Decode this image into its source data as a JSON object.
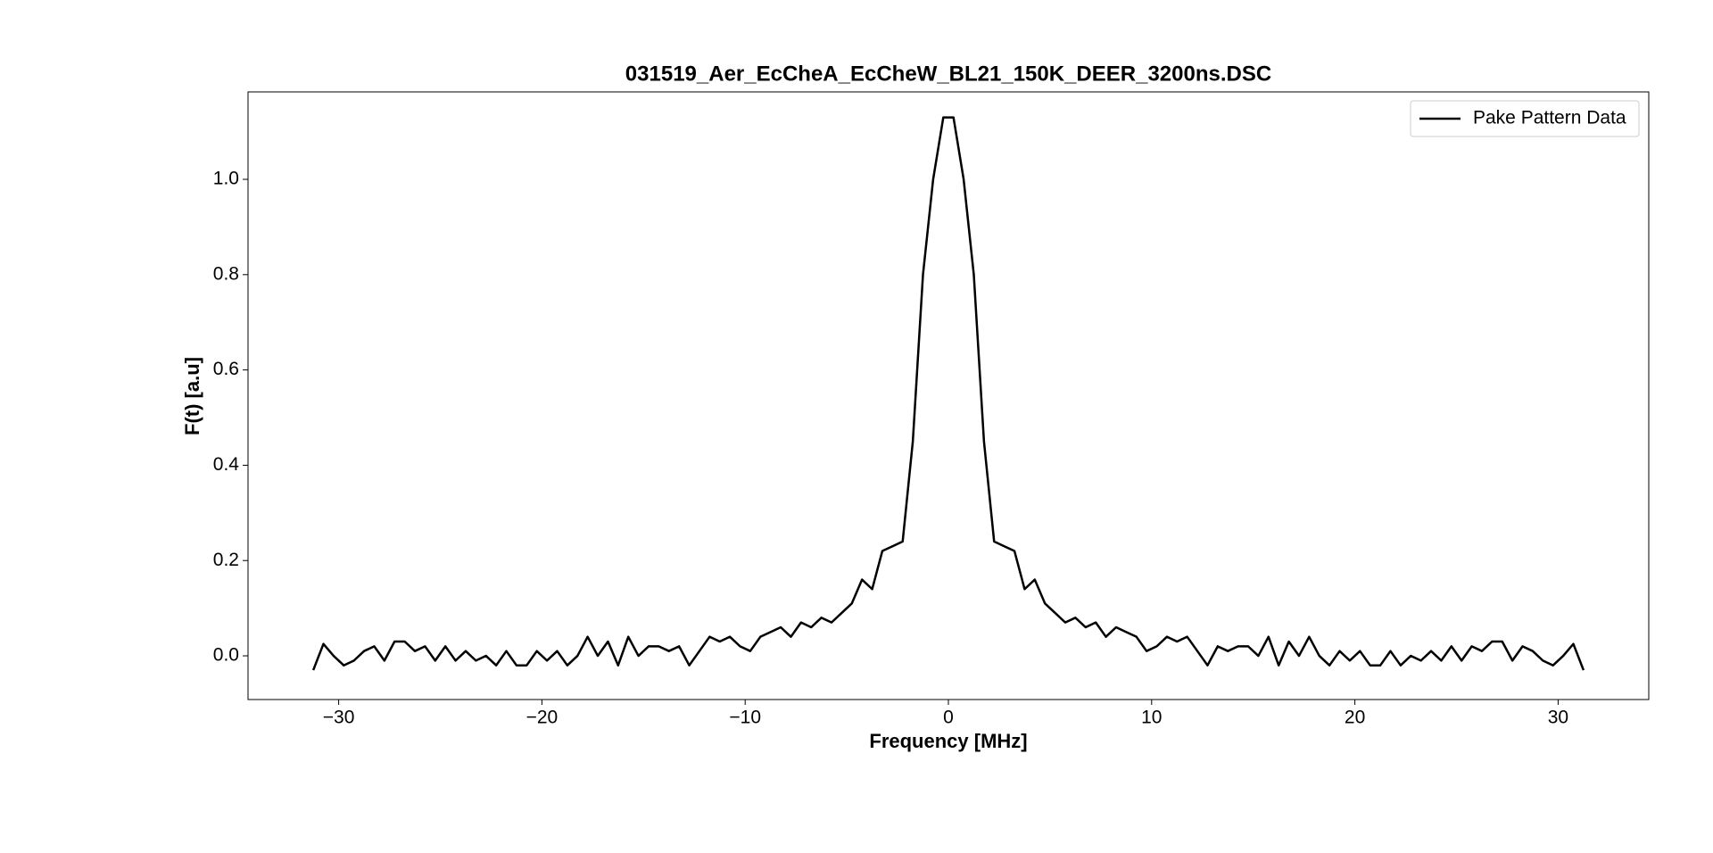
{
  "chart_data": {
    "type": "line",
    "title": "031519_Aer_EcCheA_EcCheW_BL21_150K_DEER_3200ns.DSC",
    "x_label": "Frequency [MHz]",
    "y_label": "F(t) [a.u]",
    "x": [
      -31.25,
      -30.75,
      -30.25,
      -29.75,
      -29.25,
      -28.75,
      -28.25,
      -27.75,
      -27.25,
      -26.75,
      -26.25,
      -25.75,
      -25.25,
      -24.75,
      -24.25,
      -23.75,
      -23.25,
      -22.75,
      -22.25,
      -21.75,
      -21.25,
      -20.75,
      -20.25,
      -19.75,
      -19.25,
      -18.75,
      -18.25,
      -17.75,
      -17.25,
      -16.75,
      -16.25,
      -15.75,
      -15.25,
      -14.75,
      -14.25,
      -13.75,
      -13.25,
      -12.75,
      -12.25,
      -11.75,
      -11.25,
      -10.75,
      -10.25,
      -9.75,
      -9.25,
      -8.75,
      -8.25,
      -7.75,
      -7.25,
      -6.75,
      -6.25,
      -5.75,
      -5.25,
      -4.75,
      -4.25,
      -3.75,
      -3.25,
      -2.75,
      -2.25,
      -1.75,
      -1.25,
      -0.75,
      -0.25,
      0.25,
      0.75,
      1.25,
      1.75,
      2.25,
      2.75,
      3.25,
      3.75,
      4.25,
      4.75,
      5.25,
      5.75,
      6.25,
      6.75,
      7.25,
      7.75,
      8.25,
      8.75,
      9.25,
      9.75,
      10.25,
      10.75,
      11.25,
      11.75,
      12.25,
      12.75,
      13.25,
      13.75,
      14.25,
      14.75,
      15.25,
      15.75,
      16.25,
      16.75,
      17.25,
      17.75,
      18.25,
      18.75,
      19.25,
      19.75,
      20.25,
      20.75,
      21.25,
      21.75,
      22.25,
      22.75,
      23.25,
      23.75,
      24.25,
      24.75,
      25.25,
      25.75,
      26.25,
      26.75,
      27.25,
      27.75,
      28.25,
      28.75,
      29.25,
      29.75,
      30.25,
      30.75,
      31.25
    ],
    "series": [
      {
        "name": "Pake Pattern Data",
        "color": "#000000",
        "values": [
          -0.03,
          0.025,
          0.0,
          -0.02,
          -0.01,
          0.01,
          0.02,
          -0.01,
          0.03,
          0.03,
          0.01,
          0.02,
          -0.01,
          0.02,
          -0.01,
          0.01,
          -0.01,
          0.0,
          -0.02,
          0.01,
          -0.02,
          -0.02,
          0.01,
          -0.01,
          0.01,
          -0.02,
          0.0,
          0.04,
          0.0,
          0.03,
          -0.02,
          0.04,
          0.0,
          0.02,
          0.02,
          0.01,
          0.02,
          -0.02,
          0.01,
          0.04,
          0.03,
          0.04,
          0.02,
          0.01,
          0.04,
          0.05,
          0.06,
          0.04,
          0.07,
          0.06,
          0.08,
          0.07,
          0.09,
          0.11,
          0.16,
          0.14,
          0.22,
          0.23,
          0.24,
          0.45,
          0.8,
          1.0,
          1.13,
          1.13,
          1.0,
          0.8,
          0.45,
          0.24,
          0.23,
          0.22,
          0.14,
          0.16,
          0.11,
          0.09,
          0.07,
          0.08,
          0.06,
          0.07,
          0.04,
          0.06,
          0.05,
          0.04,
          0.01,
          0.02,
          0.04,
          0.03,
          0.04,
          0.01,
          -0.02,
          0.02,
          0.01,
          0.02,
          0.02,
          0.0,
          0.04,
          -0.02,
          0.03,
          0.0,
          0.04,
          0.0,
          -0.02,
          0.01,
          -0.01,
          0.01,
          -0.02,
          -0.02,
          0.01,
          -0.02,
          0.0,
          -0.01,
          0.01,
          -0.01,
          0.02,
          -0.01,
          0.02,
          0.01,
          0.03,
          0.03,
          -0.01,
          0.02,
          0.01,
          -0.01,
          -0.02,
          0.0,
          0.025,
          -0.03
        ]
      }
    ],
    "xlim": [
      -34.46,
      34.46
    ],
    "ylim": [
      -0.0917,
      1.1835
    ],
    "xticks": [
      {
        "value": -30,
        "label": "−30"
      },
      {
        "value": -20,
        "label": "−20"
      },
      {
        "value": -10,
        "label": "−10"
      },
      0,
      10,
      20,
      30
    ],
    "yticks": [
      {
        "value": 0,
        "label": "0.0"
      },
      0.2,
      0.4,
      0.6,
      0.8,
      {
        "value": 1,
        "label": "1.0"
      }
    ],
    "legend": "upper right",
    "grid": false
  }
}
